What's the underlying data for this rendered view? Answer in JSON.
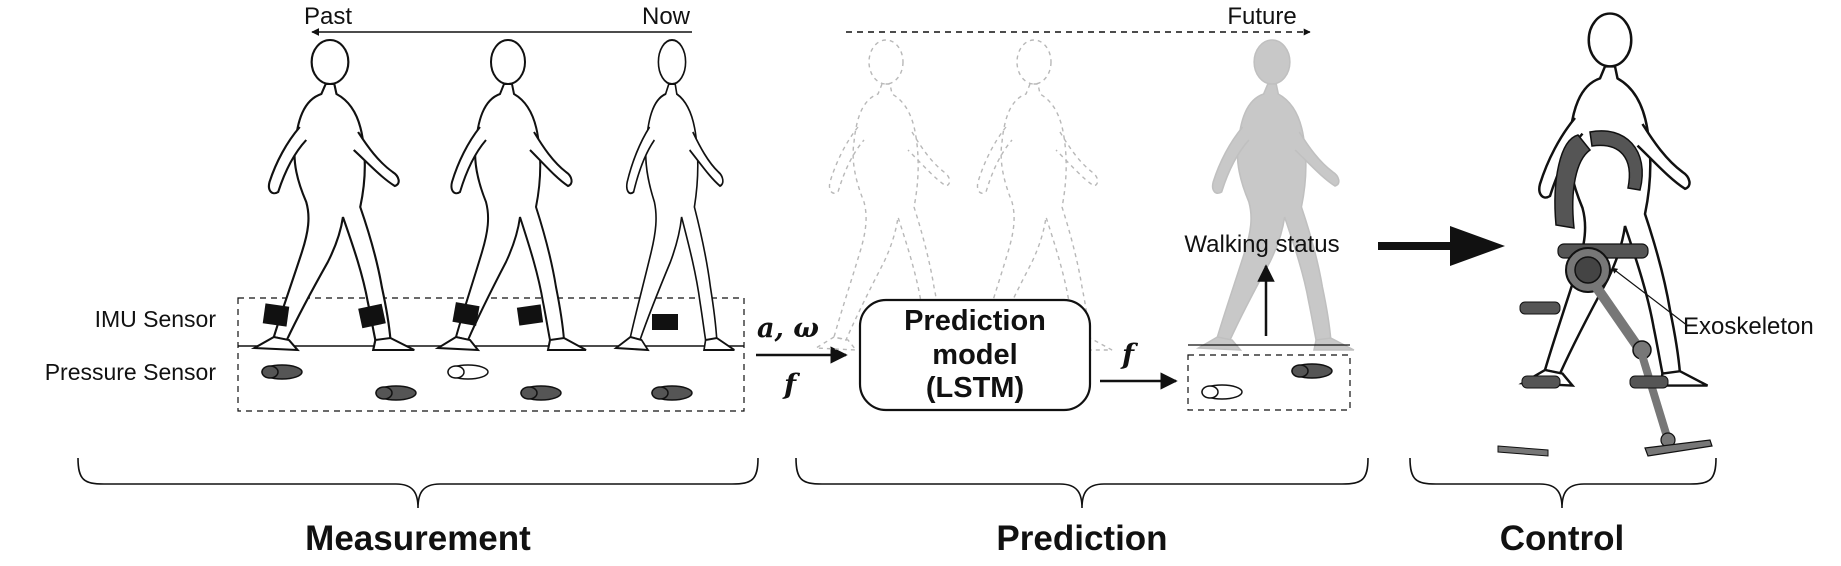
{
  "timeline": {
    "past_label": "Past",
    "now_label": "Now",
    "future_label": "Future"
  },
  "measurement": {
    "imu_label": "IMU Sensor",
    "pressure_label": "Pressure Sensor",
    "section_label": "Measurement"
  },
  "inputs": {
    "symbol_a_omega": "a, ω",
    "symbol_f": "f"
  },
  "prediction": {
    "model_line1": "Prediction",
    "model_line2": "model",
    "model_line3": "(LSTM)",
    "output_symbol_f": "f",
    "walking_status_label": "Walking status",
    "section_label": "Prediction"
  },
  "control": {
    "exoskeleton_label": "Exoskeleton",
    "section_label": "Control"
  },
  "colors": {
    "ink": "#111111",
    "ghost_figure": "#bdbdbd",
    "sensor_band": "#111111",
    "exoskeleton": "#555555",
    "footprint_dark": "#555555",
    "footprint_light": "#ffffff"
  }
}
